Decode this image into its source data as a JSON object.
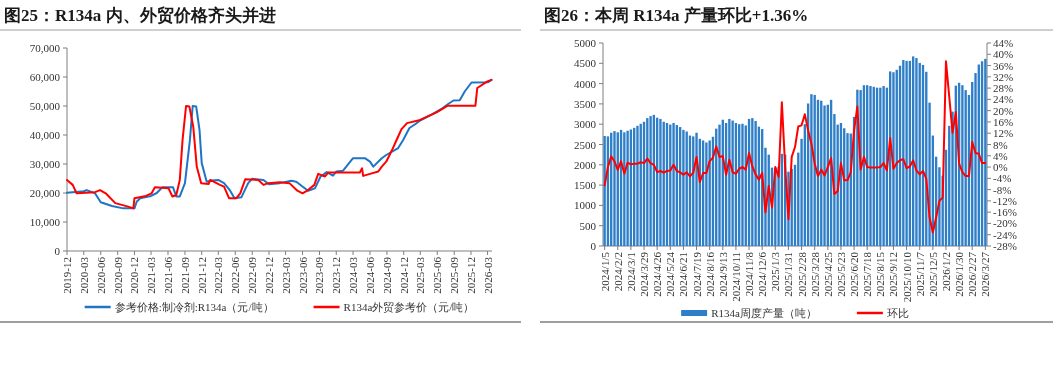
{
  "chart_data": [
    {
      "type": "line",
      "title": "图25：R134a 内、外贸价格齐头并进",
      "legend": "bottom",
      "xlim": [
        "2019-12-01",
        "2026-03-25"
      ],
      "xticks": [
        "2019-12",
        "2020-03",
        "2020-06",
        "2020-09",
        "2020-12",
        "2021-03",
        "2021-06",
        "2021-09",
        "2021-12",
        "2022-03",
        "2022-06",
        "2022-09",
        "2022-12",
        "2023-03",
        "2023-06",
        "2023-09",
        "2023-12",
        "2024-03",
        "2024-06",
        "2024-09",
        "2024-12",
        "2025-03",
        "2025-06",
        "2025-09",
        "2025-12",
        "2026-03"
      ],
      "ylim": [
        0,
        70000
      ],
      "yticks": [
        0,
        {
          "value": 10000,
          "label": "10,000"
        },
        {
          "value": 20000,
          "label": "20,000"
        },
        {
          "value": 30000,
          "label": "30,000"
        },
        {
          "value": 40000,
          "label": "40,000"
        },
        {
          "value": 50000,
          "label": "50,000"
        },
        {
          "value": 60000,
          "label": "60,000"
        },
        {
          "value": 70000,
          "label": "70,000"
        }
      ],
      "series": [
        {
          "name": "参考价格:制冷剂:R134a（元/吨）",
          "color": "#1f74c4",
          "x": [
            "2019-12-01",
            "2020-03-01",
            "2020-03-16",
            "2020-05-01",
            "2020-06-01",
            "2020-08-01",
            "2020-10-01",
            "2020-12-01",
            "2020-12-13",
            "2021-01-01",
            "2021-03-01",
            "2021-04-01",
            "2021-05-01",
            "2021-06-28",
            "2021-07-16",
            "2021-08-04",
            "2021-09-01",
            "2021-09-28",
            "2021-10-13",
            "2021-11-01",
            "2021-11-19",
            "2021-12-01",
            "2021-12-28",
            "2022-01-28",
            "2022-03-01",
            "2022-04-01",
            "2022-05-01",
            "2022-05-28",
            "2022-07-04",
            "2022-08-10",
            "2022-09-01",
            "2022-11-01",
            "2022-12-01",
            "2023-01-28",
            "2023-04-01",
            "2023-04-28",
            "2023-05-28",
            "2023-07-01",
            "2023-08-07",
            "2023-09-07",
            "2023-10-10",
            "2023-11-13",
            "2023-12-01",
            "2024-01-07",
            "2024-03-01",
            "2024-05-04",
            "2024-06-01",
            "2024-06-19",
            "2024-08-04",
            "2024-08-28",
            "2024-11-01",
            "2024-11-28",
            "2025-01-01",
            "2025-02-01",
            "2025-02-28",
            "2025-05-01",
            "2025-07-01",
            "2025-07-28",
            "2025-08-28",
            "2025-10-01",
            "2025-10-28",
            "2025-12-04",
            "2026-03-04",
            "2026-03-22"
          ],
          "values": [
            20100,
            20600,
            21000,
            19900,
            16800,
            15500,
            14700,
            14700,
            17000,
            18200,
            19000,
            20000,
            22000,
            22000,
            18800,
            18800,
            23400,
            38300,
            50000,
            49800,
            41800,
            30300,
            23900,
            24300,
            24500,
            23400,
            21100,
            18200,
            18500,
            23400,
            24900,
            24500,
            23000,
            23400,
            24200,
            23900,
            22400,
            20800,
            21600,
            25700,
            27200,
            26000,
            27400,
            27700,
            32000,
            32000,
            30800,
            29100,
            32000,
            33100,
            35500,
            38300,
            42400,
            43700,
            45000,
            47000,
            49300,
            50600,
            51900,
            52000,
            55000,
            58100,
            58200,
            59000
          ]
        },
        {
          "name": "R134a外贸参考价（元/吨）",
          "color": "#ff0000",
          "x": [
            "2019-12-01",
            "2020-01-01",
            "2020-01-22",
            "2020-05-01",
            "2020-05-28",
            "2020-06-28",
            "2020-08-19",
            "2020-10-28",
            "2020-11-25",
            "2020-12-01",
            "2021-02-01",
            "2021-03-04",
            "2021-03-22",
            "2021-06-04",
            "2021-06-25",
            "2021-07-16",
            "2021-08-04",
            "2021-08-19",
            "2021-09-07",
            "2021-09-25",
            "2021-10-16",
            "2021-11-04",
            "2021-11-28",
            "2022-01-07",
            "2022-01-16",
            "2022-03-10",
            "2022-04-01",
            "2022-04-28",
            "2022-06-07",
            "2022-06-28",
            "2022-07-25",
            "2022-10-04",
            "2022-11-01",
            "2022-11-28",
            "2023-01-28",
            "2023-03-22",
            "2023-05-04",
            "2023-06-01",
            "2023-07-01",
            "2023-08-04",
            "2023-08-25",
            "2023-10-01",
            "2023-10-19",
            "2024-04-07",
            "2024-04-19",
            "2024-04-25",
            "2024-06-01",
            "2024-07-16",
            "2024-08-04",
            "2024-08-28",
            "2024-10-01",
            "2024-10-22",
            "2024-11-19",
            "2024-12-19",
            "2025-02-28",
            "2025-05-28",
            "2025-07-28",
            "2025-12-25",
            "2026-01-04",
            "2026-02-28",
            "2026-03-22"
          ],
          "values": [
            24500,
            22800,
            19900,
            20300,
            21000,
            19900,
            16500,
            15300,
            14700,
            18200,
            19000,
            19900,
            22000,
            21600,
            18800,
            19300,
            24500,
            38300,
            50000,
            49800,
            42900,
            29100,
            23400,
            23100,
            24500,
            22800,
            22200,
            18200,
            18200,
            19900,
            24700,
            24500,
            22800,
            23400,
            23700,
            23400,
            20800,
            19900,
            21000,
            22800,
            26600,
            25700,
            27100,
            27100,
            28500,
            25900,
            26600,
            27400,
            29100,
            30800,
            35100,
            38100,
            42000,
            44100,
            45200,
            47800,
            50100,
            50100,
            56200,
            58500,
            59000
          ]
        }
      ]
    },
    {
      "type": "bar",
      "title": "图26：本周 R134a 产量环比+1.36%",
      "legend": "bottom",
      "categories": [
        "2024/1/5",
        null,
        null,
        null,
        "2024/2/2",
        null,
        null,
        null,
        "2024/3/1",
        null,
        null,
        null,
        "2024/3/29",
        null,
        null,
        null,
        "2024/4/26",
        null,
        null,
        null,
        "2024/5/24",
        null,
        null,
        null,
        "2024/6/21",
        null,
        null,
        null,
        "2024/7/19",
        null,
        null,
        null,
        "2024/8/16",
        null,
        null,
        null,
        "2024/9/13",
        null,
        null,
        null,
        "2024/10/11",
        null,
        null,
        null,
        "2024/11/8",
        null,
        null,
        null,
        "2024/12/6",
        null,
        null,
        null,
        "2025/1/3",
        null,
        null,
        null,
        "2025/1/31",
        null,
        null,
        null,
        "2025/2/28",
        null,
        null,
        null,
        "2025/3/28",
        null,
        null,
        null,
        "2025/4/25",
        null,
        null,
        null,
        "2025/5/23",
        null,
        null,
        null,
        "2025/6/20",
        null,
        null,
        null,
        "2025/7/18",
        null,
        null,
        null,
        "2025/8/15",
        null,
        null,
        null,
        "2025/9/12",
        null,
        null,
        null,
        "2025/10/10",
        null,
        null,
        null,
        "2025/11/7",
        null,
        null,
        null,
        "2025/12/5",
        null,
        null,
        null,
        "2026/1/2",
        null,
        null,
        null,
        "2026/1/30",
        null,
        null,
        null,
        "2026/2/27",
        null,
        null,
        null,
        "2026/3/27"
      ],
      "ylim": [
        0,
        5000
      ],
      "yticks": [
        0,
        500,
        1000,
        1500,
        2000,
        2500,
        3000,
        3500,
        4000,
        4500,
        5000
      ],
      "y2lim": [
        -28,
        44
      ],
      "y2ticks": [
        {
          "value": -28,
          "label": "-28%"
        },
        {
          "value": -24,
          "label": "-24%"
        },
        {
          "value": -20,
          "label": "-20%"
        },
        {
          "value": -16,
          "label": "-16%"
        },
        {
          "value": -12,
          "label": "-12%"
        },
        {
          "value": -8,
          "label": "-8%"
        },
        {
          "value": -4,
          "label": "-4%"
        },
        {
          "value": 0,
          "label": "0%"
        },
        {
          "value": 4,
          "label": "4%"
        },
        {
          "value": 8,
          "label": "8%"
        },
        {
          "value": 12,
          "label": "12%"
        },
        {
          "value": 16,
          "label": "16%"
        },
        {
          "value": 20,
          "label": "20%"
        },
        {
          "value": 24,
          "label": "24%"
        },
        {
          "value": 28,
          "label": "28%"
        },
        {
          "value": 32,
          "label": "32%"
        },
        {
          "value": 36,
          "label": "36%"
        },
        {
          "value": 40,
          "label": "40%"
        },
        {
          "value": 44,
          "label": "44%"
        }
      ],
      "series": [
        {
          "name": "R134a周度产量（吨）",
          "type": "bar",
          "color": "#2f7fc8",
          "values": [
            2710,
            2700,
            2790,
            2830,
            2800,
            2860,
            2800,
            2840,
            2870,
            2910,
            2960,
            3010,
            3060,
            3150,
            3200,
            3230,
            3160,
            3130,
            3060,
            3030,
            2990,
            3030,
            2980,
            2930,
            2860,
            2820,
            2720,
            2700,
            2790,
            2640,
            2600,
            2550,
            2600,
            2690,
            2890,
            2990,
            3110,
            3030,
            3130,
            3090,
            3030,
            3000,
            3010,
            2970,
            3130,
            3150,
            3080,
            2940,
            2880,
            2420,
            2250,
            1930,
            1930,
            1950,
            2270,
            2250,
            1830,
            1900,
            2000,
            2300,
            2640,
            3000,
            3510,
            3740,
            3720,
            3600,
            3580,
            3460,
            3480,
            3600,
            3250,
            2990,
            3030,
            2900,
            2780,
            2770,
            3180,
            3850,
            3840,
            3960,
            3960,
            3940,
            3920,
            3900,
            3900,
            3940,
            3900,
            4300,
            4280,
            4340,
            4440,
            4580,
            4560,
            4560,
            4670,
            4630,
            4510,
            4460,
            4290,
            3530,
            2720,
            2200,
            1940,
            1730,
            2370,
            2960,
            3310,
            3950,
            4020,
            3960,
            3840,
            3720,
            4040,
            4260,
            4470,
            4550,
            4610
          ]
        },
        {
          "name": "环比",
          "type": "line",
          "axis": "y2",
          "color": "#ff0000",
          "values": [
            -6.5,
            0,
            3.8,
            2,
            -1,
            2.1,
            -2.4,
            1.5,
            1,
            1.2,
            1.2,
            1.7,
            1.4,
            3,
            1.4,
            0.8,
            -1.8,
            -1.4,
            -2,
            -1.4,
            -1.2,
            0.8,
            -1.4,
            -1.9,
            -2.7,
            -1.9,
            -3.3,
            -2,
            3.6,
            -5.3,
            -2.1,
            -2.1,
            2.1,
            3.3,
            7.3,
            3.6,
            3.9,
            -2.7,
            2.6,
            -1.8,
            -2.4,
            -0.6,
            0,
            -0.9,
            5,
            0.2,
            -2.6,
            -4.5,
            -2.1,
            -16.1,
            -6.7,
            -14.4,
            0,
            -3.5,
            23,
            0,
            -18.5,
            3.6,
            7.1,
            14.4,
            14.8,
            18.7,
            13,
            8.3,
            1.2,
            -3.2,
            -0.9,
            -3,
            0,
            3.2,
            -9.6,
            -8.5,
            1.4,
            -4.7,
            -4.6,
            -1.8,
            13,
            21.5,
            -0.9,
            3.6,
            0,
            -0.2,
            -0.2,
            -0.2,
            0,
            1.4,
            -1.2,
            10.3,
            -0.6,
            1.4,
            2.4,
            2.8,
            -0.4,
            0.2,
            2.4,
            -1.2,
            -2.6,
            -1.4,
            -4.1,
            -17.9,
            -23.2,
            -17.9,
            -12,
            -10.8,
            37.5,
            24.9,
            12.1,
            19.5,
            1.2,
            -1.8,
            -3.2,
            -3.2,
            8.9,
            5,
            4.7,
            1.4,
            1.4
          ]
        }
      ]
    }
  ]
}
